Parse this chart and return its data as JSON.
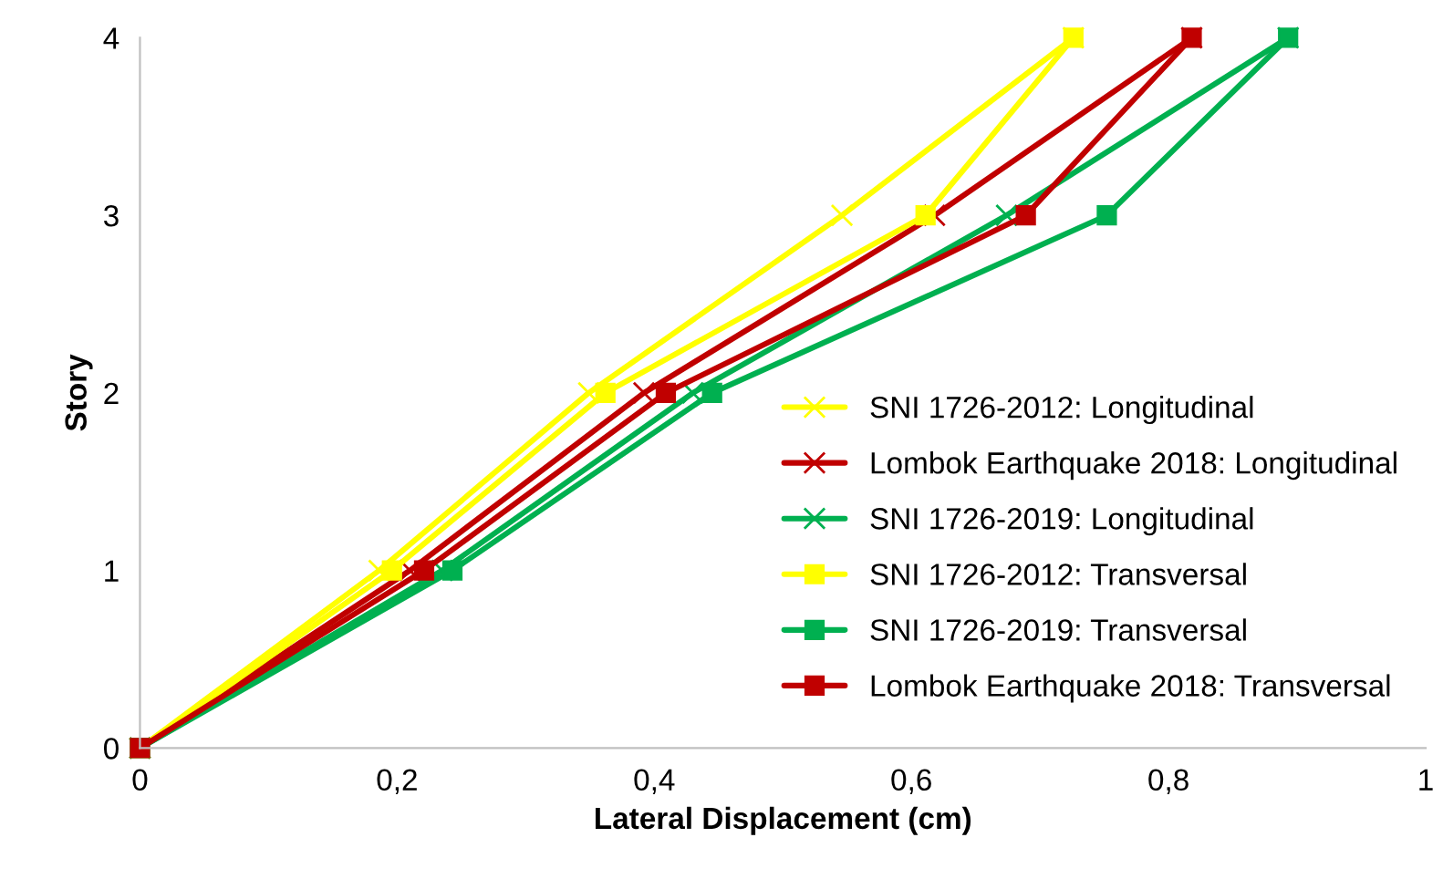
{
  "chart_data": {
    "type": "line",
    "xlabel": "Lateral Displacement (cm)",
    "ylabel": "Story",
    "xlim": [
      0,
      1
    ],
    "xticks": [
      0,
      {
        "value": 0.2,
        "label": "0,2"
      },
      {
        "value": 0.4,
        "label": "0,4"
      },
      {
        "value": 0.6,
        "label": "0,6"
      },
      {
        "value": 0.8,
        "label": "0,8"
      },
      1
    ],
    "ylim": [
      0,
      4
    ],
    "yticks": [
      0,
      1,
      2,
      3,
      4
    ],
    "grid": false,
    "legend": "right",
    "line_style": "solid",
    "series": [
      {
        "name": "SNI 1726-2012: Longitudinal",
        "color": "#ffff00",
        "marker": "cross",
        "x": [
          0,
          0.186,
          0.349,
          0.546,
          0.726
        ],
        "values": [
          0,
          1,
          2,
          3,
          4
        ]
      },
      {
        "name": "Lombok Earthquake 2018: Longitudinal",
        "color": "#c00000",
        "marker": "cross",
        "x": [
          0,
          0.21,
          0.392,
          0.618,
          0.818
        ],
        "values": [
          0,
          1,
          2,
          3,
          4
        ]
      },
      {
        "name": "SNI 1726-2019: Longitudinal",
        "color": "#00b050",
        "marker": "cross",
        "x": [
          0,
          0.235,
          0.43,
          0.674,
          0.893
        ],
        "values": [
          0,
          1,
          2,
          3,
          4
        ]
      },
      {
        "name": "SNI 1726-2012: Transversal",
        "color": "#ffff00",
        "marker": "square",
        "x": [
          0,
          0.196,
          0.362,
          0.611,
          0.726
        ],
        "values": [
          0,
          1,
          2,
          3,
          4
        ]
      },
      {
        "name": "SNI 1726-2019: Transversal",
        "color": "#00b050",
        "marker": "square",
        "x": [
          0,
          0.243,
          0.445,
          0.752,
          0.893
        ],
        "values": [
          0,
          1,
          2,
          3,
          4
        ]
      },
      {
        "name": "Lombok Earthquake 2018: Transversal",
        "color": "#c00000",
        "marker": "square",
        "x": [
          0,
          0.221,
          0.409,
          0.689,
          0.818
        ],
        "values": [
          0,
          1,
          2,
          3,
          4
        ]
      }
    ]
  }
}
